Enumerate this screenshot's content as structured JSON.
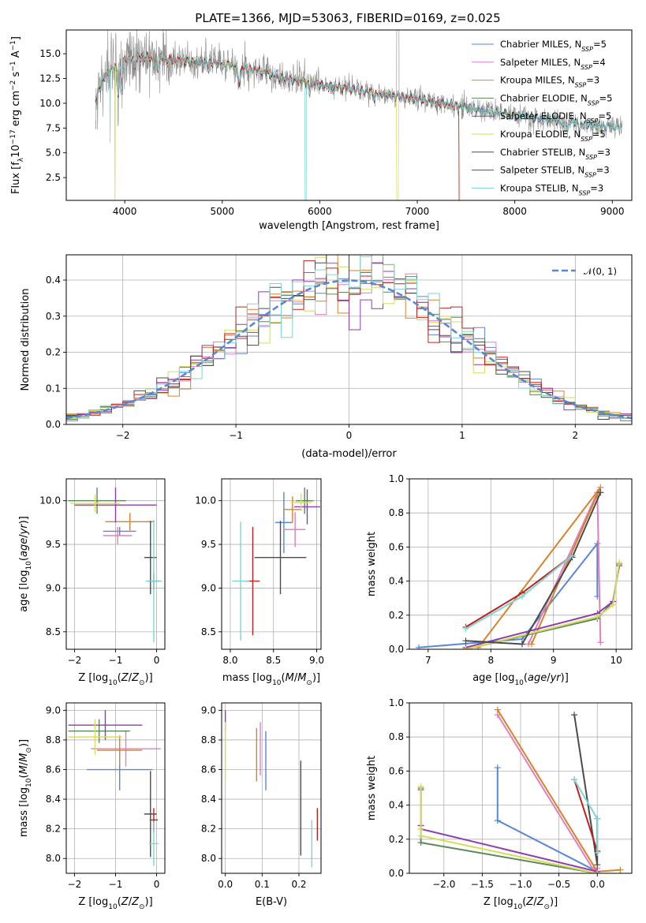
{
  "figure_title": "PLATE=1366, MJD=53063, FIBERID=0169, z=0.025",
  "colors": {
    "Chabrier MILES": "#5b86d6",
    "Salpeter MILES": "#e17fbf",
    "Kroupa MILES": "#d9822b",
    "Chabrier ELODIE": "#5a8a5a",
    "Salpeter ELODIE": "#8f3cae",
    "Kroupa ELODIE": "#d4dd5a",
    "Chabrier STELIB": "#4b4b4b",
    "Salpeter STELIB": "#c0201e",
    "Kroupa STELIB": "#7dd6d6",
    "normal_curve": "#5b86d6",
    "raw_spectrum": "#8c8c8c"
  },
  "chart_data": [
    {
      "id": "spectrum",
      "type": "line",
      "title": "PLATE=1366, MJD=53063, FIBERID=0169, z=0.025",
      "xlabel": "wavelength [Angstrom, rest frame]",
      "ylabel": "Flux [f_λ 10^-17 erg cm^-2 s^-1 A^-1]",
      "xlim": [
        3400,
        9200
      ],
      "ylim": [
        0.2,
        17.4
      ],
      "xticks": [
        4000,
        5000,
        6000,
        7000,
        8000,
        9000
      ],
      "yticks": [
        2.5,
        5.0,
        7.5,
        10.0,
        12.5,
        15.0
      ],
      "grid": false,
      "legend_position": "upper-right",
      "legend": [
        "Chabrier MILES, N_SSP=5",
        "Salpeter MILES, N_SSP=4",
        "Kroupa MILES, N_SSP=3",
        "Chabrier ELODIE, N_SSP=5",
        "Salpeter ELODIE, N_SSP=5",
        "Kroupa ELODIE, N_SSP=5",
        "Chabrier STELIB, N_SSP=3",
        "Salpeter STELIB, N_SSP=3",
        "Kroupa STELIB, N_SSP=3"
      ],
      "continuum_x": [
        3650,
        3700,
        3800,
        3900,
        4000,
        4100,
        4200,
        4300,
        4500,
        4700,
        5000,
        5300,
        5600,
        6000,
        6400,
        6800,
        7200,
        7600,
        8000,
        8400,
        8800,
        9000
      ],
      "continuum_y": [
        9.5,
        10.5,
        12.8,
        13.7,
        14.3,
        14.6,
        14.7,
        14.5,
        14.3,
        14.2,
        14.0,
        13.5,
        12.6,
        11.9,
        11.3,
        10.7,
        10.1,
        9.4,
        8.8,
        8.3,
        7.8,
        7.6
      ]
    },
    {
      "id": "residuals",
      "type": "histogram",
      "xlabel": "(data-model)/error",
      "ylabel": "Normed distribution",
      "xlim": [
        -2.5,
        2.5
      ],
      "ylim": [
        0,
        0.47
      ],
      "xticks": [
        -2,
        -1,
        0,
        1,
        2
      ],
      "yticks": [
        0.0,
        0.1,
        0.2,
        0.3,
        0.4
      ],
      "grid": true,
      "bin_width": 0.1,
      "legend_position": "upper-right",
      "legend": [
        "𝒩(0, 1)"
      ],
      "normal_mean": 0,
      "normal_sigma": 1
    },
    {
      "id": "age_vs_Z",
      "type": "errorbar",
      "xlabel": "Z [log10(Z/Z⊙)]",
      "ylabel": "age  [log10(age/yr)]",
      "xlim": [
        -2.2,
        0.2
      ],
      "ylim": [
        8.3,
        10.25
      ],
      "xticks": [
        -2,
        -1,
        0
      ],
      "yticks": [
        8.5,
        9.0,
        9.5,
        10.0
      ],
      "grid": true,
      "points": [
        {
          "model": "Chabrier MILES",
          "x": -0.9,
          "xerr": 0.4,
          "y": 9.65,
          "yerr": 0.05
        },
        {
          "model": "Salpeter MILES",
          "x": -0.95,
          "xerr": 0.35,
          "y": 9.6,
          "yerr": 0.1
        },
        {
          "model": "Kroupa MILES",
          "x": -0.65,
          "xerr": 0.6,
          "y": 9.76,
          "yerr": 0.1
        },
        {
          "model": "Chabrier ELODIE",
          "x": -1.45,
          "xerr": 0.7,
          "y": 10.0,
          "yerr": 0.15
        },
        {
          "model": "Salpeter ELODIE",
          "x": -1.0,
          "xerr": 1.0,
          "y": 9.95,
          "yerr": 0.2
        },
        {
          "model": "Kroupa ELODIE",
          "x": -1.5,
          "xerr": 0.6,
          "y": 9.97,
          "yerr": 0.1
        },
        {
          "model": "Chabrier STELIB",
          "x": -0.15,
          "xerr": 0.15,
          "y": 9.35,
          "yerr": 0.42
        },
        {
          "model": "Salpeter STELIB",
          "x": -0.07,
          "xerr": 0.15,
          "y": 9.08,
          "yerr": 0.1
        },
        {
          "model": "Kroupa STELIB",
          "x": -0.07,
          "xerr": 0.2,
          "y": 9.08,
          "yerr": 0.7
        }
      ]
    },
    {
      "id": "age_vs_mass",
      "type": "errorbar",
      "xlabel": "mass [log10(M/M⊙)]",
      "xlim": [
        7.9,
        9.05
      ],
      "ylim": [
        8.3,
        10.25
      ],
      "xticks": [
        8.0,
        8.5,
        9.0
      ],
      "yticks": [
        8.5,
        9.0,
        9.5,
        10.0
      ],
      "grid": true,
      "points": [
        {
          "model": "Chabrier MILES",
          "x": 8.62,
          "xerr": 0.1,
          "y": 9.75,
          "yerr": 0.35
        },
        {
          "model": "Salpeter MILES",
          "x": 8.75,
          "xerr": 0.12,
          "y": 9.67,
          "yerr": 0.2
        },
        {
          "model": "Kroupa MILES",
          "x": 8.72,
          "xerr": 0.1,
          "y": 9.9,
          "yerr": 0.15
        },
        {
          "model": "Chabrier ELODIE",
          "x": 8.86,
          "xerr": 0.1,
          "y": 10.0,
          "yerr": 0.15
        },
        {
          "model": "Salpeter ELODIE",
          "x": 8.89,
          "xerr": 0.15,
          "y": 9.93,
          "yerr": 0.2
        },
        {
          "model": "Kroupa ELODIE",
          "x": 8.82,
          "xerr": 0.12,
          "y": 9.98,
          "yerr": 0.1
        },
        {
          "model": "Chabrier STELIB",
          "x": 8.58,
          "xerr": 0.3,
          "y": 9.35,
          "yerr": 0.42
        },
        {
          "model": "Salpeter STELIB",
          "x": 8.26,
          "xerr": 0.08,
          "y": 9.08,
          "yerr": 0.62
        },
        {
          "model": "Kroupa STELIB",
          "x": 8.12,
          "xerr": 0.1,
          "y": 9.08,
          "yerr": 0.68
        }
      ]
    },
    {
      "id": "mass_weight_vs_age",
      "type": "line",
      "xlabel": "age  [log10(age/yr)]",
      "ylabel": "mass weight",
      "xlim": [
        6.7,
        10.25
      ],
      "ylim": [
        0,
        1.0
      ],
      "xticks": [
        7,
        8,
        9,
        10
      ],
      "yticks": [
        0.0,
        0.2,
        0.4,
        0.6,
        0.8,
        1.0
      ],
      "grid": true,
      "series": [
        {
          "model": "Chabrier MILES",
          "x": [
            6.85,
            8.5,
            9.7,
            9.7
          ],
          "y": [
            0.01,
            0.06,
            0.62,
            0.31
          ]
        },
        {
          "model": "Salpeter MILES",
          "x": [
            8.6,
            9.7,
            9.75
          ],
          "y": [
            0.03,
            0.92,
            0.04
          ]
        },
        {
          "model": "Kroupa MILES",
          "x": [
            8.65,
            9.75,
            7.8
          ],
          "y": [
            0.03,
            0.95,
            0.01
          ]
        },
        {
          "model": "Chabrier ELODIE",
          "x": [
            7.6,
            9.7,
            9.95,
            10.05
          ],
          "y": [
            0.0,
            0.18,
            0.28,
            0.5
          ]
        },
        {
          "model": "Salpeter ELODIE",
          "x": [
            7.6,
            9.7,
            9.95,
            10.05
          ],
          "y": [
            0.01,
            0.21,
            0.28,
            0.49
          ]
        },
        {
          "model": "Kroupa ELODIE",
          "x": [
            7.6,
            9.7,
            9.95,
            10.05
          ],
          "y": [
            0.0,
            0.19,
            0.26,
            0.51
          ]
        },
        {
          "model": "Chabrier STELIB",
          "x": [
            7.6,
            8.5,
            9.3,
            9.75
          ],
          "y": [
            0.05,
            0.03,
            0.54,
            0.92
          ]
        },
        {
          "model": "Salpeter STELIB",
          "x": [
            7.6,
            8.5,
            9.3
          ],
          "y": [
            0.13,
            0.33,
            0.55
          ]
        },
        {
          "model": "Kroupa STELIB",
          "x": [
            7.6,
            8.5,
            9.3
          ],
          "y": [
            0.12,
            0.31,
            0.55
          ]
        }
      ]
    },
    {
      "id": "mass_vs_Z",
      "type": "errorbar",
      "xlabel": "Z [log10(Z/Z⊙)]",
      "ylabel": "mass [log10(M/M⊙)]",
      "xlim": [
        -2.2,
        0.2
      ],
      "ylim": [
        7.9,
        9.05
      ],
      "xticks": [
        -2,
        -1,
        0
      ],
      "yticks": [
        8.0,
        8.2,
        8.4,
        8.6,
        8.8,
        9.0
      ],
      "grid": true,
      "points": [
        {
          "model": "Chabrier MILES",
          "x": -0.9,
          "xerr": 0.8,
          "y": 8.6,
          "yerr": 0.14
        },
        {
          "model": "Salpeter MILES",
          "x": -0.75,
          "xerr": 0.85,
          "y": 8.74,
          "yerr": 0.12
        },
        {
          "model": "Kroupa MILES",
          "x": -0.9,
          "xerr": 0.55,
          "y": 8.73,
          "yerr": 0.1
        },
        {
          "model": "Chabrier ELODIE",
          "x": -1.4,
          "xerr": 0.75,
          "y": 8.86,
          "yerr": 0.08
        },
        {
          "model": "Salpeter ELODIE",
          "x": -1.25,
          "xerr": 0.9,
          "y": 8.9,
          "yerr": 0.1
        },
        {
          "model": "Kroupa ELODIE",
          "x": -1.5,
          "xerr": 0.65,
          "y": 8.82,
          "yerr": 0.12
        },
        {
          "model": "Chabrier STELIB",
          "x": -0.15,
          "xerr": 0.15,
          "y": 8.3,
          "yerr": 0.29
        },
        {
          "model": "Salpeter STELIB",
          "x": -0.07,
          "xerr": 0.1,
          "y": 8.26,
          "yerr": 0.08
        },
        {
          "model": "Kroupa STELIB",
          "x": -0.07,
          "xerr": 0.12,
          "y": 8.1,
          "yerr": 0.15
        }
      ]
    },
    {
      "id": "mass_vs_EBV",
      "type": "errorbar",
      "xlabel": "E(B-V)",
      "xlim": [
        -0.01,
        0.26
      ],
      "ylim": [
        7.9,
        9.05
      ],
      "xticks": [
        0.0,
        0.1,
        0.2
      ],
      "yticks": [
        8.0,
        8.2,
        8.4,
        8.6,
        8.8,
        9.0
      ],
      "grid": true,
      "points": [
        {
          "model": "Chabrier MILES",
          "x": 0.11,
          "xerr": 0,
          "y": 8.66,
          "yerr": 0.2
        },
        {
          "model": "Salpeter MILES",
          "x": 0.095,
          "xerr": 0,
          "y": 8.74,
          "yerr": 0.18
        },
        {
          "model": "Kroupa MILES",
          "x": 0.085,
          "xerr": 0,
          "y": 8.7,
          "yerr": 0.18
        },
        {
          "model": "Salpeter ELODIE",
          "x": 0.0,
          "xerr": 0,
          "y": 8.93,
          "yerr": 0.07
        },
        {
          "model": "Kroupa ELODIE",
          "x": 0.0,
          "xerr": 0,
          "y": 8.72,
          "yerr": 0.2
        },
        {
          "model": "Chabrier STELIB",
          "x": 0.205,
          "xerr": 0,
          "y": 8.34,
          "yerr": 0.32
        },
        {
          "model": "Salpeter STELIB",
          "x": 0.25,
          "xerr": 0,
          "y": 8.23,
          "yerr": 0.11
        },
        {
          "model": "Kroupa STELIB",
          "x": 0.235,
          "xerr": 0,
          "y": 8.1,
          "yerr": 0.16
        }
      ]
    },
    {
      "id": "mass_weight_vs_Z",
      "type": "line",
      "xlabel": "Z [log10(Z/Z⊙)]",
      "ylabel": "mass weight",
      "xlim": [
        -2.45,
        0.45
      ],
      "ylim": [
        0,
        1.0
      ],
      "xticks": [
        -2.0,
        -1.5,
        -1.0,
        -0.5,
        0.0
      ],
      "yticks": [
        0.0,
        0.2,
        0.4,
        0.6,
        0.8,
        1.0
      ],
      "grid": true,
      "series": [
        {
          "model": "Chabrier MILES",
          "x": [
            -1.3,
            -1.3,
            -1.3,
            0.0
          ],
          "y": [
            0.62,
            0.31,
            0.31,
            0.01
          ]
        },
        {
          "model": "Salpeter MILES",
          "x": [
            -1.3,
            -0.05,
            0.0
          ],
          "y": [
            0.93,
            0.02,
            0.03
          ]
        },
        {
          "model": "Kroupa MILES",
          "x": [
            -1.3,
            0.0,
            0.3
          ],
          "y": [
            0.96,
            0.01,
            0.02
          ]
        },
        {
          "model": "Chabrier ELODIE",
          "x": [
            -2.3,
            -2.3,
            -2.3,
            0.0
          ],
          "y": [
            0.5,
            0.28,
            0.18,
            0.0
          ]
        },
        {
          "model": "Salpeter ELODIE",
          "x": [
            -2.3,
            -2.3,
            -2.3,
            0.0
          ],
          "y": [
            0.49,
            0.28,
            0.26,
            0.01
          ]
        },
        {
          "model": "Kroupa ELODIE",
          "x": [
            -2.3,
            -2.3,
            -2.3,
            0.0
          ],
          "y": [
            0.51,
            0.26,
            0.22,
            0.0
          ]
        },
        {
          "model": "Chabrier STELIB",
          "x": [
            -0.3,
            0.0,
            0.0,
            0.0
          ],
          "y": [
            0.93,
            0.05,
            0.32,
            0.13
          ]
        },
        {
          "model": "Salpeter STELIB",
          "x": [
            -0.3,
            0.0
          ],
          "y": [
            0.55,
            0.13
          ]
        },
        {
          "model": "Kroupa STELIB",
          "x": [
            -0.3,
            0.0,
            0.0
          ],
          "y": [
            0.55,
            0.32,
            0.12
          ]
        }
      ]
    }
  ]
}
